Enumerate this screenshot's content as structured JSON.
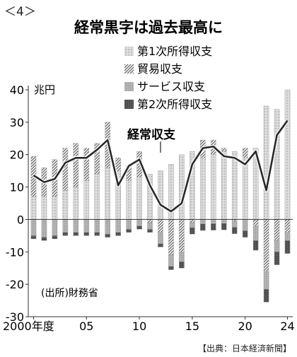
{
  "figure_label": "＜4＞",
  "credit": "【出典：日本経済新聞】",
  "chart_data": {
    "type": "bar",
    "title": "経常黒字は過去最高に",
    "unit_label": "兆円",
    "source_note": "(出所)財務省",
    "line_label": "経常収支",
    "ylim": [
      -30,
      40
    ],
    "y_ticks": [
      40,
      30,
      20,
      10,
      0,
      -10,
      -20,
      -30
    ],
    "x_start_year": 2000,
    "x_end_year": 2024,
    "x_ticks": [
      {
        "year": 2000,
        "label": "2000年度"
      },
      {
        "year": 2005,
        "label": "05"
      },
      {
        "year": 2010,
        "label": "10"
      },
      {
        "year": 2015,
        "label": "15"
      },
      {
        "year": 2020,
        "label": "20"
      },
      {
        "year": 2024,
        "label": "24"
      }
    ],
    "legend_position": "top-right",
    "grid": false,
    "stacked": true,
    "series": [
      {
        "name": "第1次所得収支",
        "color": "#c8c8c8",
        "values": [
          7,
          7,
          7,
          9,
          10,
          12,
          14,
          16,
          15,
          12,
          13,
          14,
          15,
          17,
          20,
          21,
          19,
          20,
          21,
          21,
          19,
          22,
          35,
          34,
          40
        ]
      },
      {
        "name": "貿易収支",
        "color": "#808080",
        "values": [
          12.5,
          9,
          11.5,
          13,
          13.5,
          10,
          9.5,
          14,
          4,
          4.5,
          8,
          -1,
          -4,
          -11,
          -10,
          -1,
          5.5,
          4.5,
          1,
          -0.5,
          3,
          -2,
          -16,
          -6.5,
          -4
        ]
      },
      {
        "name": "サービス収支",
        "color": "#adadad",
        "values": [
          -5,
          -5.5,
          -5,
          -4,
          -4,
          -4,
          -4,
          -4.5,
          -4,
          -3,
          -2,
          -2,
          -3.5,
          -3.5,
          -3,
          -1.5,
          -1.4,
          -1.3,
          -1.2,
          -1.9,
          -3.5,
          -4.5,
          -5.5,
          -3.5,
          -2.5
        ]
      },
      {
        "name": "第2次所得収支",
        "color": "#555555",
        "values": [
          -1,
          -1,
          -1,
          -1,
          -1,
          -1,
          -1,
          -1,
          -1,
          -1,
          -1,
          -1,
          -1,
          -1,
          -2,
          -2,
          -2,
          -2,
          -2,
          -2,
          -2,
          -3,
          -4,
          -4,
          -4
        ]
      },
      {
        "name": "経常収支",
        "type": "line",
        "color": "#2a2a2a",
        "values": [
          13.6,
          11.5,
          12.5,
          17.5,
          19.0,
          19.0,
          21.5,
          24.5,
          10.5,
          16.5,
          18.5,
          10.5,
          4.5,
          2.5,
          5.0,
          17.0,
          22.0,
          22.5,
          19.5,
          19.0,
          17.0,
          21.0,
          9.0,
          26.0,
          30.5
        ]
      }
    ]
  }
}
